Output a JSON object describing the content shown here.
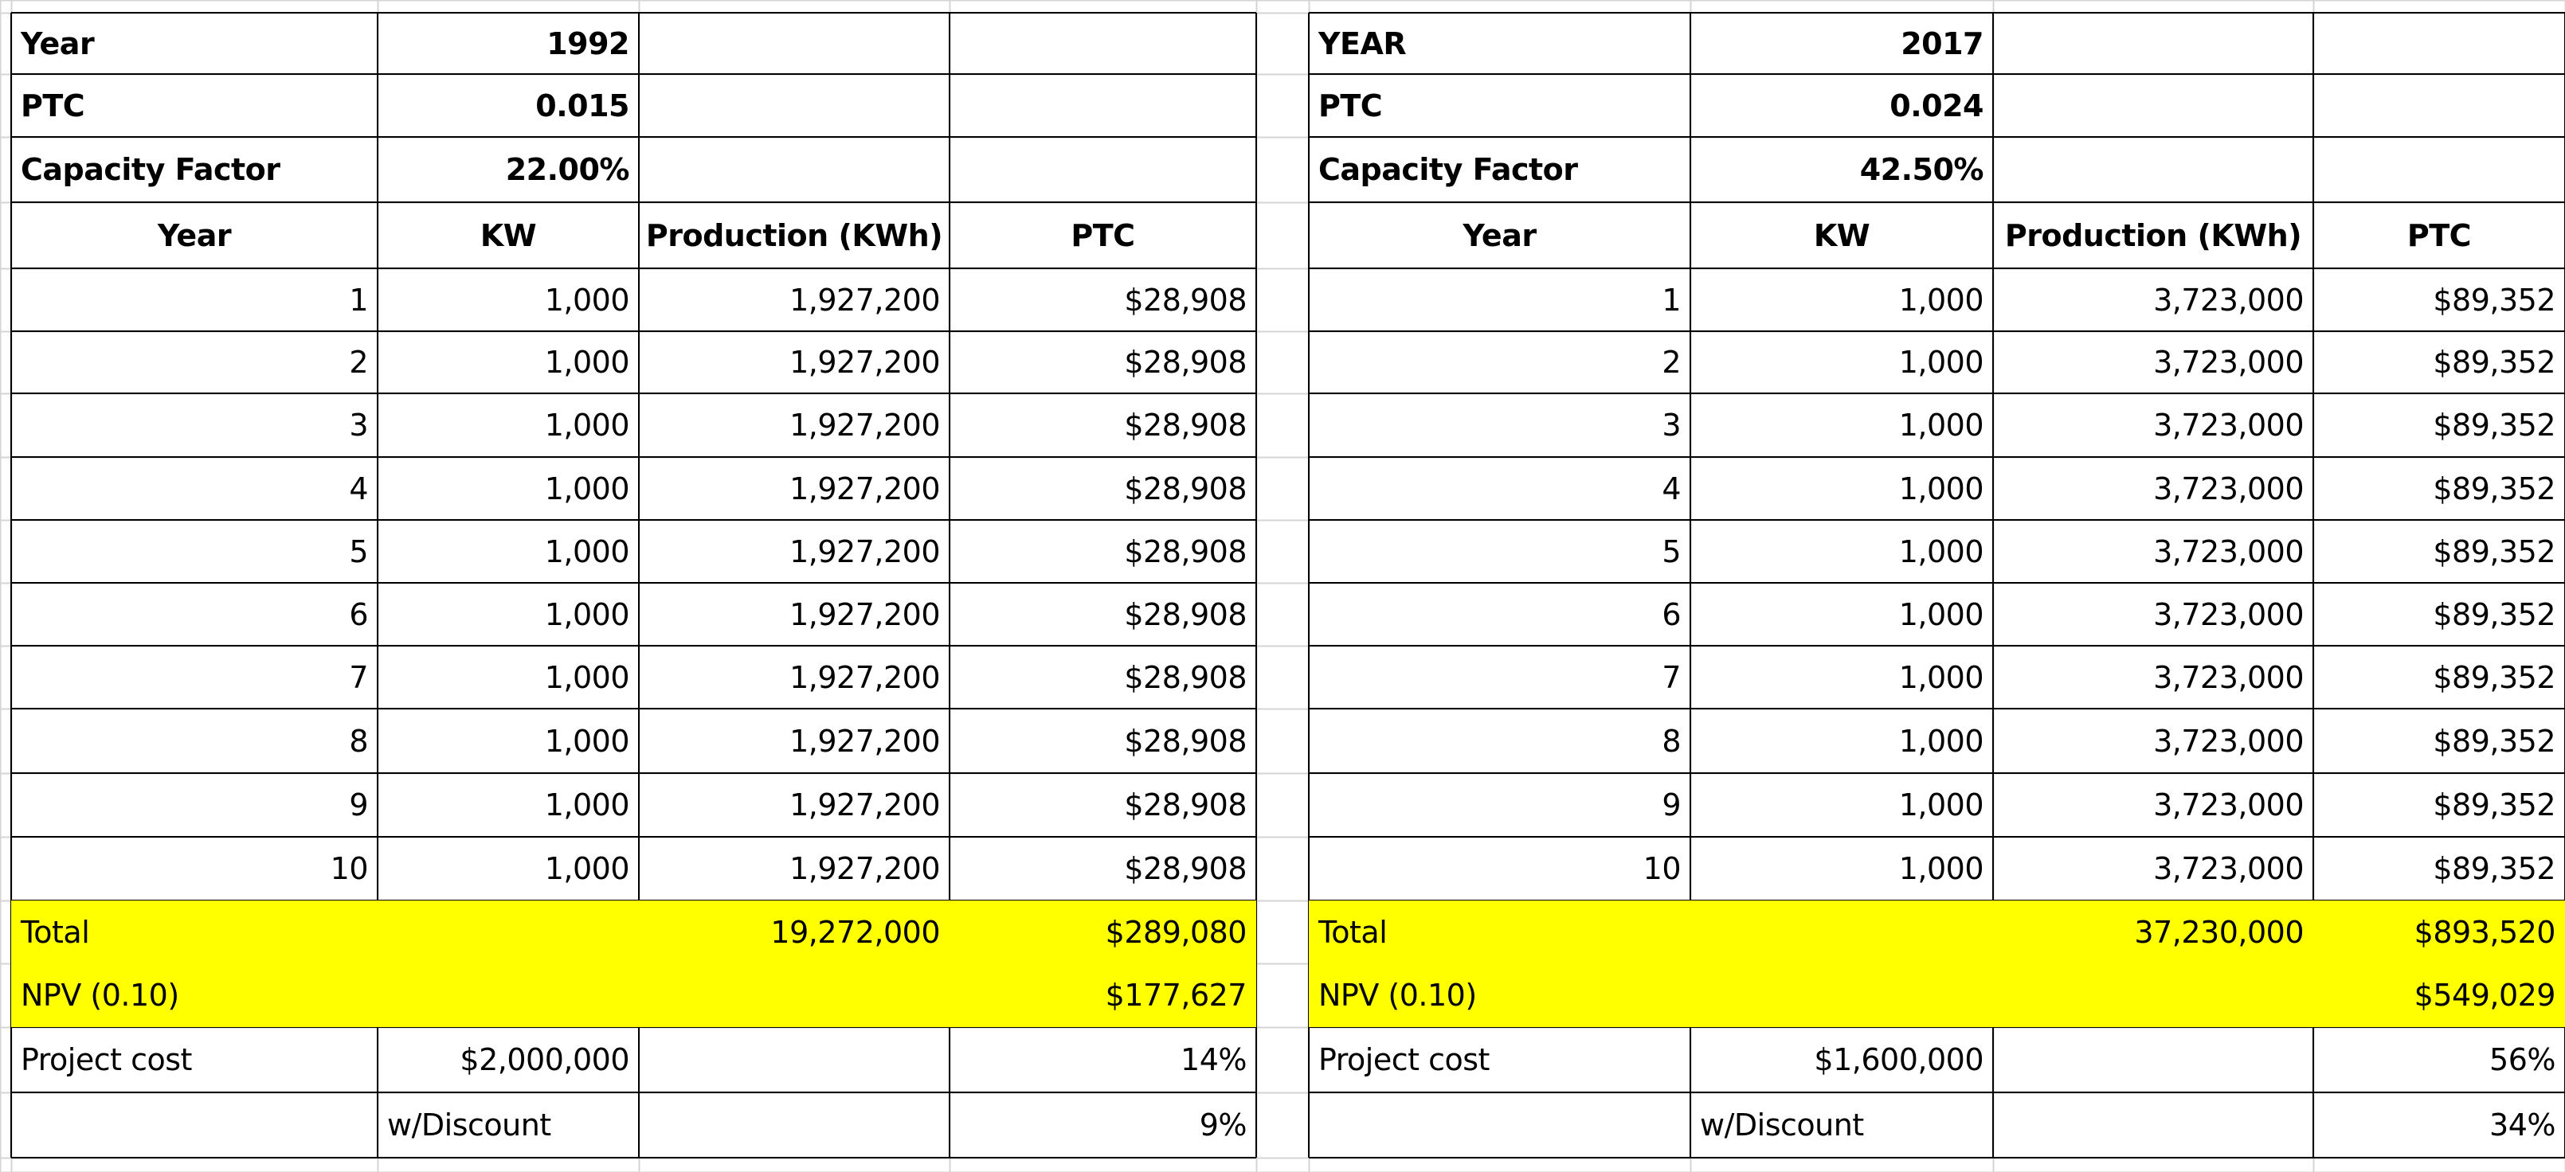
{
  "highlight_color": "#ffff00",
  "gridline_color": "#d4d4d4",
  "left": {
    "params": [
      {
        "label": "Year",
        "value": "1992"
      },
      {
        "label": "PTC",
        "value": "0.015"
      },
      {
        "label": "Capacity Factor",
        "value": "22.00%"
      }
    ],
    "headers": [
      "Year",
      "KW",
      "Production (KWh)",
      "PTC"
    ],
    "rows": [
      [
        "1",
        "1,000",
        "1,927,200",
        "$28,908"
      ],
      [
        "2",
        "1,000",
        "1,927,200",
        "$28,908"
      ],
      [
        "3",
        "1,000",
        "1,927,200",
        "$28,908"
      ],
      [
        "4",
        "1,000",
        "1,927,200",
        "$28,908"
      ],
      [
        "5",
        "1,000",
        "1,927,200",
        "$28,908"
      ],
      [
        "6",
        "1,000",
        "1,927,200",
        "$28,908"
      ],
      [
        "7",
        "1,000",
        "1,927,200",
        "$28,908"
      ],
      [
        "8",
        "1,000",
        "1,927,200",
        "$28,908"
      ],
      [
        "9",
        "1,000",
        "1,927,200",
        "$28,908"
      ],
      [
        "10",
        "1,000",
        "1,927,200",
        "$28,908"
      ]
    ],
    "total": {
      "label": "Total",
      "production": "19,272,000",
      "ptc": "$289,080"
    },
    "npv": {
      "label": "NPV (0.10)",
      "ptc": "$177,627"
    },
    "project_cost": {
      "label": "Project cost",
      "value": "$2,000,000",
      "pct": "14%"
    },
    "discount": {
      "label": "w/Discount",
      "pct": "9%"
    }
  },
  "right": {
    "params": [
      {
        "label": "YEAR",
        "value": "2017"
      },
      {
        "label": "PTC",
        "value": "0.024"
      },
      {
        "label": "Capacity Factor",
        "value": "42.50%"
      }
    ],
    "headers": [
      "Year",
      "KW",
      "Production (KWh)",
      "PTC"
    ],
    "rows": [
      [
        "1",
        "1,000",
        "3,723,000",
        "$89,352"
      ],
      [
        "2",
        "1,000",
        "3,723,000",
        "$89,352"
      ],
      [
        "3",
        "1,000",
        "3,723,000",
        "$89,352"
      ],
      [
        "4",
        "1,000",
        "3,723,000",
        "$89,352"
      ],
      [
        "5",
        "1,000",
        "3,723,000",
        "$89,352"
      ],
      [
        "6",
        "1,000",
        "3,723,000",
        "$89,352"
      ],
      [
        "7",
        "1,000",
        "3,723,000",
        "$89,352"
      ],
      [
        "8",
        "1,000",
        "3,723,000",
        "$89,352"
      ],
      [
        "9",
        "1,000",
        "3,723,000",
        "$89,352"
      ],
      [
        "10",
        "1,000",
        "3,723,000",
        "$89,352"
      ]
    ],
    "total": {
      "label": "Total",
      "production": "37,230,000",
      "ptc": "$893,520"
    },
    "npv": {
      "label": "NPV (0.10)",
      "ptc": "$549,029"
    },
    "project_cost": {
      "label": "Project cost",
      "value": "$1,600,000",
      "pct": "56%"
    },
    "discount": {
      "label": "w/Discount",
      "pct": "34%"
    }
  }
}
